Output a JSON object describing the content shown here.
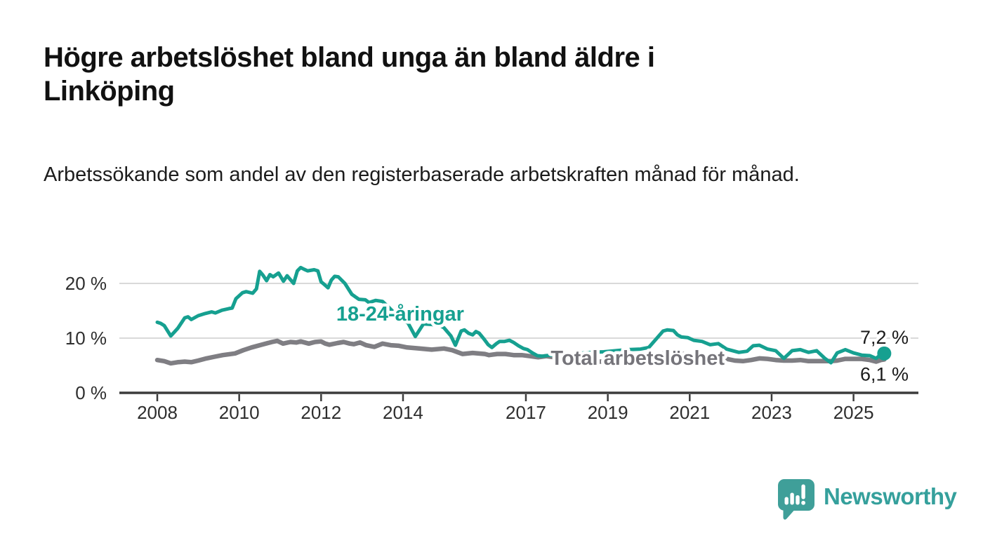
{
  "page": {
    "background": "#ffffff"
  },
  "header": {
    "title": "Högre arbetslöshet bland unga än bland äldre i Linköping",
    "subtitle": "Arbetssökande som andel av den registerbaserade arbetskraften månad för månad."
  },
  "chart_data": {
    "type": "line",
    "title": "Högre arbetslöshet bland unga än bland äldre i Linköping",
    "subtitle": "Arbetssökande som andel av den registerbaserade arbetskraften månad för månad.",
    "grid": "horizontal",
    "legend_position": "inline-labels",
    "x_axis": {
      "min": 2007.1,
      "max": 2025.95,
      "ticks": [
        2008,
        2010,
        2012,
        2014,
        2017,
        2019,
        2021,
        2023,
        2025
      ],
      "tick_labels": [
        "2008",
        "2010",
        "2012",
        "2014",
        "2017",
        "2019",
        "2021",
        "2023",
        "2025"
      ]
    },
    "y_axis": {
      "min": 0,
      "max": 23.5,
      "unit": "%",
      "ticks": [
        0,
        10,
        20
      ],
      "tick_labels": [
        "0 %",
        "10 %",
        "20 %"
      ]
    },
    "series": [
      {
        "name": "Total arbetslöshet",
        "color": "#7f7e83",
        "label_color": "#75747a",
        "end_value": 6.1,
        "end_label": "6,1 %",
        "label_anchor": {
          "x": 2019.73,
          "y": 6.4
        },
        "end_dot": false,
        "points": [
          [
            2008.0,
            6.0
          ],
          [
            2008.17,
            5.8
          ],
          [
            2008.33,
            5.4
          ],
          [
            2008.5,
            5.6
          ],
          [
            2008.67,
            5.7
          ],
          [
            2008.83,
            5.6
          ],
          [
            2009.0,
            5.9
          ],
          [
            2009.2,
            6.3
          ],
          [
            2009.4,
            6.6
          ],
          [
            2009.6,
            6.9
          ],
          [
            2009.9,
            7.2
          ],
          [
            2010.1,
            7.8
          ],
          [
            2010.3,
            8.3
          ],
          [
            2010.55,
            8.8
          ],
          [
            2010.8,
            9.3
          ],
          [
            2010.93,
            9.5
          ],
          [
            2011.07,
            9.0
          ],
          [
            2011.25,
            9.3
          ],
          [
            2011.4,
            9.2
          ],
          [
            2011.5,
            9.4
          ],
          [
            2011.7,
            9.0
          ],
          [
            2011.85,
            9.3
          ],
          [
            2012.0,
            9.4
          ],
          [
            2012.1,
            9.0
          ],
          [
            2012.2,
            8.8
          ],
          [
            2012.4,
            9.1
          ],
          [
            2012.55,
            9.3
          ],
          [
            2012.7,
            9.0
          ],
          [
            2012.8,
            8.9
          ],
          [
            2012.95,
            9.2
          ],
          [
            2013.1,
            8.7
          ],
          [
            2013.3,
            8.4
          ],
          [
            2013.5,
            9.0
          ],
          [
            2013.7,
            8.7
          ],
          [
            2013.9,
            8.6
          ],
          [
            2014.1,
            8.3
          ],
          [
            2014.4,
            8.1
          ],
          [
            2014.7,
            7.9
          ],
          [
            2015.0,
            8.1
          ],
          [
            2015.2,
            7.8
          ],
          [
            2015.45,
            7.1
          ],
          [
            2015.7,
            7.3
          ],
          [
            2016.0,
            7.1
          ],
          [
            2016.1,
            6.9
          ],
          [
            2016.3,
            7.1
          ],
          [
            2016.5,
            7.1
          ],
          [
            2016.7,
            6.9
          ],
          [
            2016.9,
            6.9
          ],
          [
            2017.1,
            6.7
          ],
          [
            2017.3,
            6.5
          ],
          [
            2017.5,
            6.7
          ],
          [
            2017.7,
            6.5
          ],
          [
            2017.95,
            6.1
          ],
          [
            2018.2,
            6.0
          ],
          [
            2018.5,
            5.8
          ],
          [
            2018.8,
            5.7
          ],
          [
            2019.1,
            5.8
          ],
          [
            2019.4,
            6.0
          ],
          [
            2019.8,
            6.2
          ],
          [
            2020.1,
            6.6
          ],
          [
            2020.4,
            7.3
          ],
          [
            2020.7,
            7.2
          ],
          [
            2021.0,
            7.0
          ],
          [
            2021.3,
            6.8
          ],
          [
            2021.6,
            6.5
          ],
          [
            2021.9,
            6.2
          ],
          [
            2022.1,
            5.9
          ],
          [
            2022.3,
            5.8
          ],
          [
            2022.5,
            6.0
          ],
          [
            2022.7,
            6.3
          ],
          [
            2022.9,
            6.2
          ],
          [
            2023.1,
            6.0
          ],
          [
            2023.3,
            5.9
          ],
          [
            2023.5,
            5.9
          ],
          [
            2023.7,
            6.0
          ],
          [
            2023.9,
            5.8
          ],
          [
            2024.1,
            5.8
          ],
          [
            2024.3,
            5.8
          ],
          [
            2024.45,
            5.8
          ],
          [
            2024.6,
            5.9
          ],
          [
            2024.8,
            6.2
          ],
          [
            2025.0,
            6.2
          ],
          [
            2025.2,
            6.2
          ],
          [
            2025.4,
            6.0
          ],
          [
            2025.55,
            5.7
          ],
          [
            2025.67,
            6.0
          ],
          [
            2025.75,
            6.1
          ]
        ]
      },
      {
        "name": "18-24-åringar",
        "color": "#16a090",
        "label_color": "#16a090",
        "end_value": 7.2,
        "end_label": "7,2 %",
        "label_anchor": {
          "x": 2013.93,
          "y": 14.5
        },
        "end_dot": true,
        "points": [
          [
            2008.0,
            12.9
          ],
          [
            2008.08,
            12.7
          ],
          [
            2008.17,
            12.3
          ],
          [
            2008.33,
            10.4
          ],
          [
            2008.5,
            11.8
          ],
          [
            2008.67,
            13.7
          ],
          [
            2008.75,
            13.9
          ],
          [
            2008.83,
            13.4
          ],
          [
            2009.0,
            14.1
          ],
          [
            2009.17,
            14.5
          ],
          [
            2009.33,
            14.8
          ],
          [
            2009.42,
            14.6
          ],
          [
            2009.58,
            15.1
          ],
          [
            2009.75,
            15.4
          ],
          [
            2009.83,
            15.5
          ],
          [
            2009.92,
            17.2
          ],
          [
            2010.08,
            18.3
          ],
          [
            2010.17,
            18.5
          ],
          [
            2010.33,
            18.2
          ],
          [
            2010.42,
            19.0
          ],
          [
            2010.5,
            22.2
          ],
          [
            2010.58,
            21.5
          ],
          [
            2010.67,
            20.5
          ],
          [
            2010.75,
            21.6
          ],
          [
            2010.83,
            21.2
          ],
          [
            2010.96,
            21.9
          ],
          [
            2011.08,
            20.4
          ],
          [
            2011.17,
            21.4
          ],
          [
            2011.33,
            20.0
          ],
          [
            2011.42,
            22.3
          ],
          [
            2011.5,
            22.9
          ],
          [
            2011.58,
            22.6
          ],
          [
            2011.67,
            22.3
          ],
          [
            2011.83,
            22.5
          ],
          [
            2011.92,
            22.3
          ],
          [
            2012.0,
            20.3
          ],
          [
            2012.08,
            19.8
          ],
          [
            2012.17,
            19.2
          ],
          [
            2012.25,
            20.6
          ],
          [
            2012.33,
            21.3
          ],
          [
            2012.42,
            21.2
          ],
          [
            2012.58,
            20.0
          ],
          [
            2012.75,
            18.0
          ],
          [
            2012.92,
            17.1
          ],
          [
            2013.08,
            17.0
          ],
          [
            2013.17,
            16.5
          ],
          [
            2013.33,
            16.9
          ],
          [
            2013.5,
            16.7
          ],
          [
            2013.67,
            15.5
          ],
          [
            2013.83,
            14.3
          ],
          [
            2014.0,
            13.1
          ],
          [
            2014.12,
            12.8
          ],
          [
            2014.3,
            10.3
          ],
          [
            2014.5,
            12.6
          ],
          [
            2014.7,
            12.5
          ],
          [
            2014.9,
            12.3
          ],
          [
            2015.0,
            11.9
          ],
          [
            2015.17,
            10.4
          ],
          [
            2015.28,
            8.7
          ],
          [
            2015.42,
            11.3
          ],
          [
            2015.5,
            11.5
          ],
          [
            2015.6,
            10.9
          ],
          [
            2015.7,
            10.6
          ],
          [
            2015.78,
            11.2
          ],
          [
            2015.86,
            10.9
          ],
          [
            2015.97,
            9.9
          ],
          [
            2016.08,
            8.8
          ],
          [
            2016.17,
            8.3
          ],
          [
            2016.28,
            9.0
          ],
          [
            2016.36,
            9.4
          ],
          [
            2016.48,
            9.4
          ],
          [
            2016.6,
            9.6
          ],
          [
            2016.7,
            9.2
          ],
          [
            2016.82,
            8.6
          ],
          [
            2016.94,
            8.1
          ],
          [
            2017.04,
            7.9
          ],
          [
            2017.16,
            7.3
          ],
          [
            2017.28,
            6.8
          ],
          [
            2017.4,
            6.7
          ],
          [
            2017.6,
            6.9
          ],
          [
            2017.8,
            7.0
          ],
          [
            2018.0,
            7.1
          ],
          [
            2018.3,
            7.2
          ],
          [
            2018.6,
            7.4
          ],
          [
            2018.9,
            7.5
          ],
          [
            2019.2,
            7.7
          ],
          [
            2019.5,
            7.9
          ],
          [
            2019.8,
            8.0
          ],
          [
            2020.0,
            8.3
          ],
          [
            2020.2,
            10.0
          ],
          [
            2020.35,
            11.3
          ],
          [
            2020.45,
            11.5
          ],
          [
            2020.6,
            11.4
          ],
          [
            2020.7,
            10.6
          ],
          [
            2020.8,
            10.2
          ],
          [
            2020.95,
            10.1
          ],
          [
            2021.1,
            9.6
          ],
          [
            2021.3,
            9.4
          ],
          [
            2021.5,
            8.8
          ],
          [
            2021.7,
            9.0
          ],
          [
            2021.9,
            8.0
          ],
          [
            2022.0,
            7.8
          ],
          [
            2022.2,
            7.4
          ],
          [
            2022.4,
            7.6
          ],
          [
            2022.55,
            8.6
          ],
          [
            2022.7,
            8.7
          ],
          [
            2022.9,
            8.0
          ],
          [
            2023.1,
            7.7
          ],
          [
            2023.3,
            6.3
          ],
          [
            2023.5,
            7.7
          ],
          [
            2023.7,
            7.9
          ],
          [
            2023.9,
            7.4
          ],
          [
            2024.1,
            7.7
          ],
          [
            2024.3,
            6.3
          ],
          [
            2024.45,
            5.5
          ],
          [
            2024.6,
            7.3
          ],
          [
            2024.8,
            7.9
          ],
          [
            2025.0,
            7.3
          ],
          [
            2025.2,
            6.9
          ],
          [
            2025.4,
            6.8
          ],
          [
            2025.55,
            6.3
          ],
          [
            2025.67,
            7.0
          ],
          [
            2025.75,
            7.2
          ]
        ]
      }
    ],
    "colors": {
      "axis": "#3c3c3c",
      "gridline": "#d9d9d9",
      "tick_text": "#2e2e2e",
      "end_label_text": "#1a1a1a"
    }
  },
  "footer": {
    "brand": "Newsworthy",
    "logo_icon": "newsworthy-speech-bubble-chart-icon",
    "brand_color": "#35a09c"
  }
}
